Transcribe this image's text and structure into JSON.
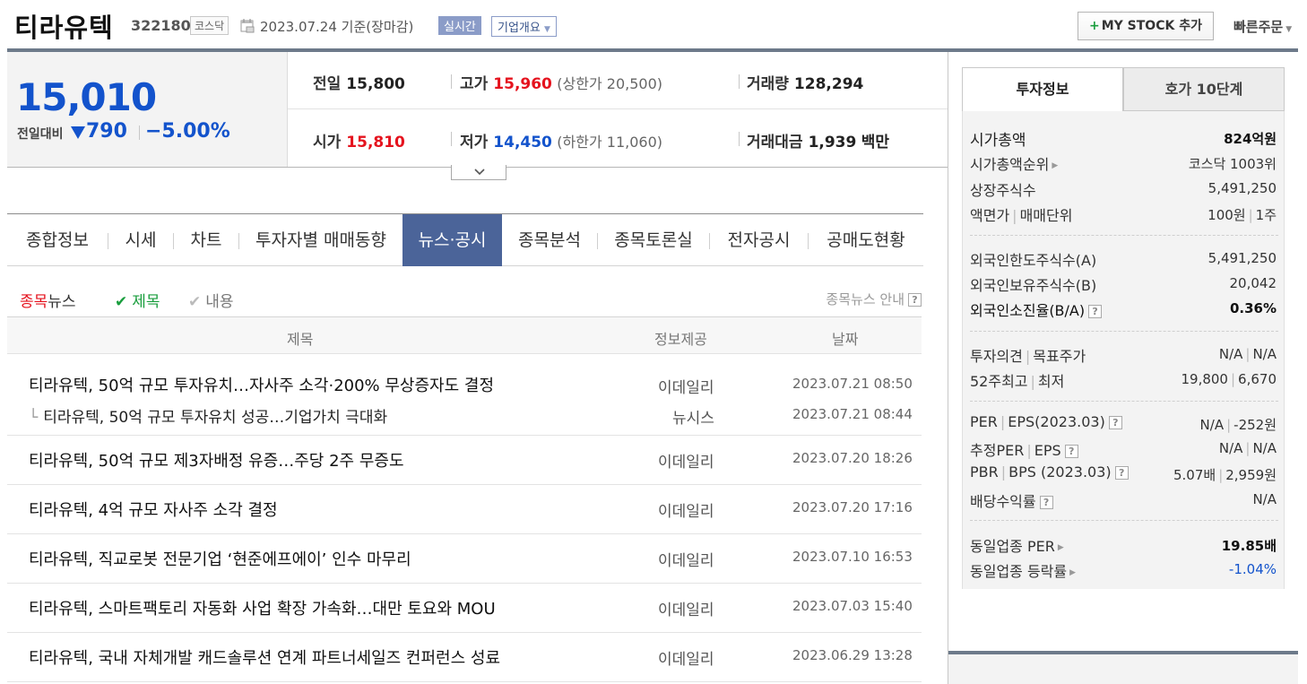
{
  "header": {
    "stock_name": "티라유텍",
    "stock_code": "322180",
    "market": "코스닥",
    "date_text": "2023.07.24  기준(장마감)",
    "live_label": "실시간",
    "overview_label": "기업개요",
    "mystock_label": "MY STOCK 추가",
    "quick_order_label": "빠른주문"
  },
  "price": {
    "current": "15,010",
    "compare_label": "전일대비",
    "change": "790",
    "change_rate": "−5.00%"
  },
  "stats": {
    "prev_label": "전일",
    "prev_value": "15,800",
    "high_label": "고가",
    "high_value": "15,960",
    "upper_limit": "(상한가 20,500)",
    "volume_label": "거래량",
    "volume_value": "128,294",
    "open_label": "시가",
    "open_value": "15,810",
    "low_label": "저가",
    "low_value": "14,450",
    "lower_limit": "(하한가 11,060)",
    "amount_label": "거래대금",
    "amount_value": "1,939",
    "amount_unit": "백만"
  },
  "tabs": [
    "종합정보",
    "시세",
    "차트",
    "투자자별 매매동향",
    "뉴스·공시",
    "종목분석",
    "종목토론실",
    "전자공시",
    "공매도현황"
  ],
  "active_tab": "뉴스·공시",
  "news_filter": {
    "stock_news_red": "종목",
    "stock_news_rest": "뉴스",
    "title_option": "제목",
    "content_option": "내용",
    "guide": "종목뉴스 안내"
  },
  "news_table": {
    "headers": {
      "title": "제목",
      "provider": "정보제공",
      "date": "날짜"
    },
    "rows": [
      {
        "title": "티라유텍, 50억 규모 투자유치…자사주 소각·200% 무상증자도 결정",
        "provider": "이데일리",
        "date": "2023.07.21 08:50"
      },
      {
        "title": "티라유텍, 50억 규모 투자유치 성공…기업가치 극대화",
        "provider": "뉴시스",
        "date": "2023.07.21 08:44"
      },
      {
        "title": "티라유텍, 50억 규모 제3자배정 유증…주당 2주 무증도",
        "provider": "이데일리",
        "date": "2023.07.20 18:26"
      },
      {
        "title": "티라유텍, 4억 규모 자사주 소각 결정",
        "provider": "이데일리",
        "date": "2023.07.20 17:16"
      },
      {
        "title": "티라유텍, 직교로봇 전문기업 ‘현준에프에이’ 인수 마무리",
        "provider": "이데일리",
        "date": "2023.07.10 16:53"
      },
      {
        "title": "티라유텍, 스마트팩토리 자동화 사업 확장 가속화…대만 토요와 MOU",
        "provider": "이데일리",
        "date": "2023.07.03 15:40"
      },
      {
        "title": "티라유텍, 국내 자체개발 캐드솔루션 연계 파트너세일즈 컨퍼런스 성료",
        "provider": "이데일리",
        "date": "2023.06.29 13:28"
      }
    ]
  },
  "right_panel": {
    "tab_invest": "투자정보",
    "tab_orderbook": "호가 10단계",
    "market_cap_label": "시가총액",
    "market_cap_value": "824억원",
    "market_cap_rank_label": "시가총액순위",
    "market_cap_rank_value": "코스닥 1003위",
    "shares_label": "상장주식수",
    "shares_value": "5,491,250",
    "par_label": "액면가",
    "unit_label": "매매단위",
    "par_value": "100원",
    "unit_value": "1주",
    "foreign_limit_label": "외국인한도주식수(A)",
    "foreign_limit_value": "5,491,250",
    "foreign_hold_label": "외국인보유주식수(B)",
    "foreign_hold_value": "20,042",
    "foreign_ratio_label": "외국인소진율(B/A)",
    "foreign_ratio_value": "0.36%",
    "opinion_label": "투자의견",
    "target_label": "목표주가",
    "opinion_value": "N/A",
    "target_value": "N/A",
    "high52_label": "52주최고",
    "low52_label": "최저",
    "high52_value": "19,800",
    "low52_value": "6,670",
    "per_label": "PER",
    "eps_label": "EPS(2023.03)",
    "per_value": "N/A",
    "eps_value": "-252원",
    "est_per_label": "추정PER",
    "est_eps_label": "EPS",
    "est_per_value": "N/A",
    "est_eps_value": "N/A",
    "pbr_label": "PBR",
    "bps_label": "BPS (2023.03)",
    "pbr_value": "5.07배",
    "bps_value": "2,959원",
    "dividend_label": "배당수익률",
    "dividend_value": "N/A",
    "sector_per_label": "동일업종 PER",
    "sector_per_value": "19.85배",
    "sector_rate_label": "동일업종 등락률",
    "sector_rate_value": "-1.04%"
  }
}
